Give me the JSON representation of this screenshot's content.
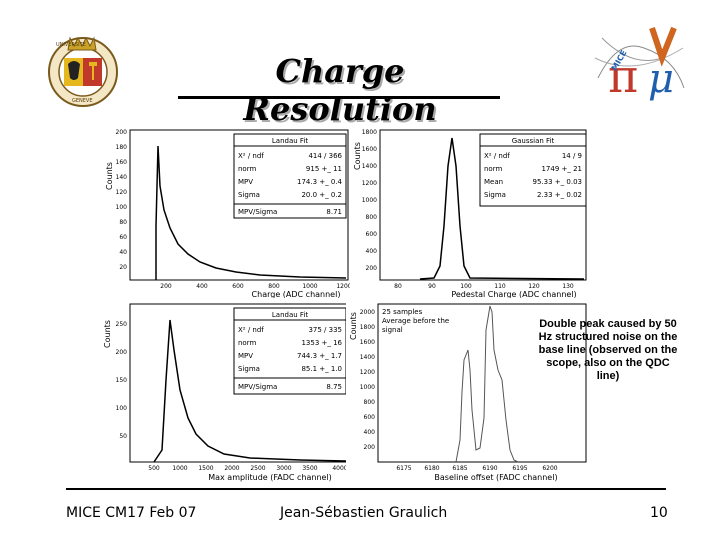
{
  "title": "Charge Resolution",
  "logo_left": {
    "text_top": "UNIVERSITE",
    "text_bottom": "GENEVE"
  },
  "logo_right": {
    "text": "MICE"
  },
  "panels": {
    "tl": {
      "ylabel": "Counts",
      "xlabel": "Charge (ADC channel)",
      "yticks": [
        "200",
        "180",
        "160",
        "140",
        "120",
        "100",
        "80",
        "60",
        "40",
        "20"
      ],
      "xticks": [
        "200",
        "400",
        "600",
        "800",
        "1000",
        "1200"
      ],
      "legend_title": "Landau Fit",
      "legend_rows": [
        [
          "X² / ndf",
          "414 / 366"
        ],
        [
          "norm",
          "915 +_ 11"
        ],
        [
          "MPV",
          "174.3 +_ 0.4"
        ],
        [
          "Sigma",
          "20.0 +_ 0.2"
        ]
      ],
      "ratio": [
        "MPV/Sigma",
        "8.71"
      ]
    },
    "tr": {
      "ylabel": "Counts",
      "xlabel": "Pedestal Charge (ADC channel)",
      "yticks": [
        "1800",
        "1600",
        "1400",
        "1200",
        "1000",
        "800",
        "600",
        "400",
        "200"
      ],
      "xticks": [
        "80",
        "90",
        "100",
        "110",
        "120",
        "130"
      ],
      "legend_title": "Gaussian Fit",
      "legend_rows": [
        [
          "X² / ndf",
          "14 / 9"
        ],
        [
          "norm",
          "1749 +_ 21"
        ],
        [
          "Mean",
          "95.33 +_ 0.03"
        ],
        [
          "Sigma",
          "2.33 +_ 0.02"
        ]
      ]
    },
    "bl": {
      "ylabel": "Counts",
      "xlabel": "Max amplitude (FADC channel)",
      "yticks": [
        "250",
        "200",
        "150",
        "100",
        "50"
      ],
      "xticks": [
        "500",
        "1000",
        "1500",
        "2000",
        "2500",
        "3000",
        "3500",
        "4000"
      ],
      "legend_title": "Landau Fit",
      "legend_rows": [
        [
          "X² / ndf",
          "375 / 335"
        ],
        [
          "norm",
          "1353 +_ 16"
        ],
        [
          "MPV",
          "744.3 +_ 1.7"
        ],
        [
          "Sigma",
          "85.1 +_ 1.0"
        ]
      ],
      "ratio": [
        "MPV/Sigma",
        "8.75"
      ]
    },
    "br": {
      "ylabel": "Counts",
      "xlabel": "Baseline offset (FADC channel)",
      "yticks": [
        "2000",
        "1800",
        "1600",
        "1400",
        "1200",
        "1000",
        "800",
        "600",
        "400",
        "200"
      ],
      "xticks": [
        "6175",
        "6180",
        "6185",
        "6190",
        "6195",
        "6200"
      ],
      "annotation": "25 samples Average before the signal"
    }
  },
  "note": "Double peak caused by 50 Hz structured noise on the base line (observed on the scope, also on the QDC line)",
  "footer": {
    "left": "MICE CM17 Feb 07",
    "center": "Jean-Sébastien Graulich",
    "right": "10"
  }
}
